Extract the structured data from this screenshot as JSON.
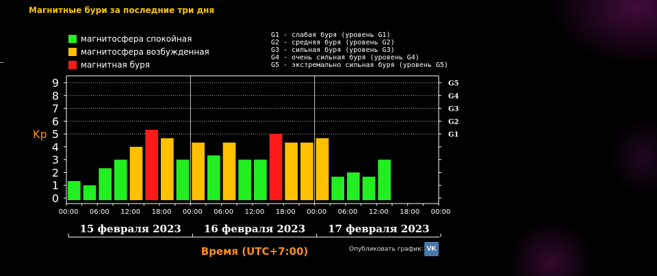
{
  "title": "Магнитные бури за последние три дня",
  "legend": [
    {
      "label": "магнитосфера спокойная",
      "color": "#22ee22"
    },
    {
      "label": "магнитосфера возбужденная",
      "color": "#ffc000"
    },
    {
      "label": "магнитная буря",
      "color": "#ff1a1a"
    }
  ],
  "storm_levels": [
    "G1 - слабая буря (уровень G1)",
    "G2 - средняя буря (уровень G2)",
    "G3 - сильная буря (уровень G3)",
    "G4 - очень сильная буря (уровень G4)",
    "G5 - экстремально сильная буря (уровень G5)"
  ],
  "chart_data": {
    "type": "bar",
    "ylabel": "Kp",
    "ylim": [
      0,
      9
    ],
    "yticks": [
      "0",
      "1",
      "2",
      "3",
      "4",
      "5",
      "6",
      "7",
      "8",
      "9"
    ],
    "right_axis_labels": [
      {
        "label": "G1",
        "kp": 5
      },
      {
        "label": "G2",
        "kp": 6
      },
      {
        "label": "G3",
        "kp": 7
      },
      {
        "label": "G4",
        "kp": 8
      },
      {
        "label": "G5",
        "kp": 9
      }
    ],
    "x_tick_labels": [
      "00:00",
      "06:00",
      "12:00",
      "18:00",
      "00:00",
      "06:00",
      "12:00",
      "18:00",
      "00:00",
      "06:00",
      "12:00",
      "18:00",
      "00:00"
    ],
    "days": [
      "15 февраля 2023",
      "16 февраля 2023",
      "17 февраля 2023"
    ],
    "xlabel": "Время (UTC+7:00)",
    "grid": "horizontal dotted at Kp 5-9",
    "values": [
      1.33,
      1.0,
      2.33,
      3.0,
      4.0,
      5.33,
      4.67,
      3.0,
      4.33,
      3.33,
      4.33,
      3.0,
      3.0,
      5.0,
      4.33,
      4.33,
      4.67,
      1.67,
      2.0,
      1.67,
      3.0
    ],
    "colors": [
      "#22ee22",
      "#22ee22",
      "#22ee22",
      "#22ee22",
      "#ffc000",
      "#ff1a1a",
      "#ffc000",
      "#22ee22",
      "#ffc000",
      "#22ee22",
      "#ffc000",
      "#22ee22",
      "#22ee22",
      "#ff1a1a",
      "#ffc000",
      "#ffc000",
      "#ffc000",
      "#22ee22",
      "#22ee22",
      "#22ee22",
      "#22ee22"
    ],
    "total_slots": 24
  },
  "publish": {
    "label": "Опубликовать график:",
    "vk_icon": "vk-icon",
    "vk_text": "VK"
  }
}
